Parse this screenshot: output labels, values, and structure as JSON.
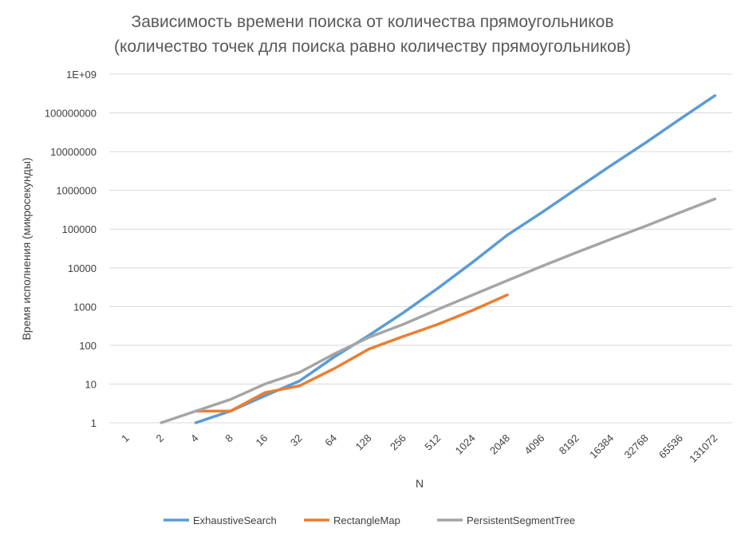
{
  "chart_data": {
    "type": "line",
    "title_line1": "Зависимость времени поиска от количества прямоугольников",
    "title_line2": "(количество точек для поиска равно количеству прямоугольников)",
    "xlabel": "N",
    "ylabel": "Время исполнения (микросекунды)",
    "y_scale": "log",
    "ylim": [
      1,
      1000000000
    ],
    "y_tick_labels": [
      "1",
      "10",
      "100",
      "1000",
      "10000",
      "100000",
      "1000000",
      "10000000",
      "100000000",
      "1E+09"
    ],
    "categories": [
      "1",
      "2",
      "4",
      "8",
      "16",
      "32",
      "64",
      "128",
      "256",
      "512",
      "1024",
      "2048",
      "4096",
      "8192",
      "16384",
      "32768",
      "65536",
      "131072"
    ],
    "grid": true,
    "legend_position": "bottom",
    "series": [
      {
        "name": "ExhaustiveSearch",
        "color": "#5B9BD5",
        "values": [
          null,
          null,
          1,
          2,
          5,
          12,
          50,
          180,
          700,
          3000,
          14000,
          70000,
          270000,
          1100000,
          4400000,
          17000000,
          70000000,
          280000000
        ]
      },
      {
        "name": "RectangleMap",
        "color": "#ED7D31",
        "values": [
          null,
          null,
          2,
          2,
          6,
          9,
          25,
          80,
          170,
          350,
          800,
          2000,
          null,
          null,
          null,
          null,
          null,
          null
        ]
      },
      {
        "name": "PersistentSegmentTree",
        "color": "#A5A5A5",
        "values": [
          null,
          1,
          2,
          4,
          10,
          20,
          60,
          160,
          350,
          850,
          2000,
          4700,
          11000,
          25000,
          55000,
          120000,
          270000,
          600000
        ]
      }
    ]
  }
}
